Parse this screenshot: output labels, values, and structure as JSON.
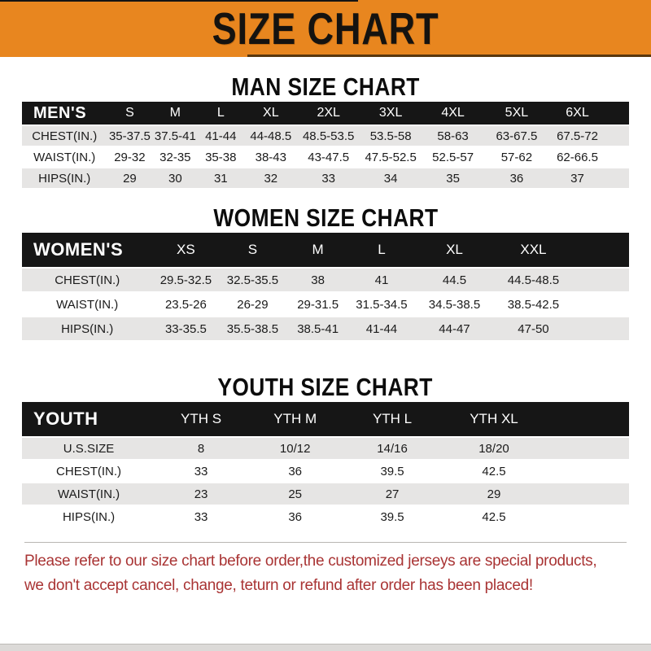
{
  "banner": {
    "title": "SIZE CHART"
  },
  "colors": {
    "banner_orange": "#E8861F",
    "header_bar_black": "#161616",
    "row_gray": "#E6E5E4",
    "note_red": "#A93434",
    "heading_black": "#0c0c0c"
  },
  "sections": [
    {
      "heading": "MAN SIZE CHART",
      "header_label": "MEN'S",
      "columns": [
        "S",
        "M",
        "L",
        "XL",
        "2XL",
        "3XL",
        "4XL",
        "5XL",
        "6XL"
      ],
      "rows": [
        {
          "label": "CHEST(IN.)",
          "values": [
            "35-37.5",
            "37.5-41",
            "41-44",
            "44-48.5",
            "48.5-53.5",
            "53.5-58",
            "58-63",
            "63-67.5",
            "67.5-72"
          ]
        },
        {
          "label": "WAIST(IN.)",
          "values": [
            "29-32",
            "32-35",
            "35-38",
            "38-43",
            "43-47.5",
            "47.5-52.5",
            "52.5-57",
            "57-62",
            "62-66.5"
          ]
        },
        {
          "label": "HIPS(IN.)",
          "values": [
            "29",
            "30",
            "31",
            "32",
            "33",
            "34",
            "35",
            "36",
            "37"
          ]
        }
      ]
    },
    {
      "heading": "WOMEN SIZE CHART",
      "header_label": "WOMEN'S",
      "columns": [
        "XS",
        "S",
        "M",
        "L",
        "XL",
        "XXL"
      ],
      "rows": [
        {
          "label": "CHEST(IN.)",
          "values": [
            "29.5-32.5",
            "32.5-35.5",
            "38",
            "41",
            "44.5",
            "44.5-48.5"
          ]
        },
        {
          "label": "WAIST(IN.)",
          "values": [
            "23.5-26",
            "26-29",
            "29-31.5",
            "31.5-34.5",
            "34.5-38.5",
            "38.5-42.5"
          ]
        },
        {
          "label": "HIPS(IN.)",
          "values": [
            "33-35.5",
            "35.5-38.5",
            "38.5-41",
            "41-44",
            "44-47",
            "47-50"
          ]
        }
      ]
    },
    {
      "heading": "YOUTH SIZE CHART",
      "header_label": "YOUTH",
      "columns": [
        "YTH S",
        "YTH M",
        "YTH L",
        "YTH XL"
      ],
      "rows": [
        {
          "label": "U.S.SIZE",
          "values": [
            "8",
            "10/12",
            "14/16",
            "18/20"
          ]
        },
        {
          "label": "CHEST(IN.)",
          "values": [
            "33",
            "36",
            "39.5",
            "42.5"
          ]
        },
        {
          "label": "WAIST(IN.)",
          "values": [
            "23",
            "25",
            "27",
            "29"
          ]
        },
        {
          "label": "HIPS(IN.)",
          "values": [
            "33",
            "36",
            "39.5",
            "42.5"
          ]
        }
      ]
    }
  ],
  "footnote": {
    "line1": "Please refer to our size chart before order,the customized jerseys are special products,",
    "line2": "we don't accept cancel, change, teturn or refund after order has been placed!"
  }
}
